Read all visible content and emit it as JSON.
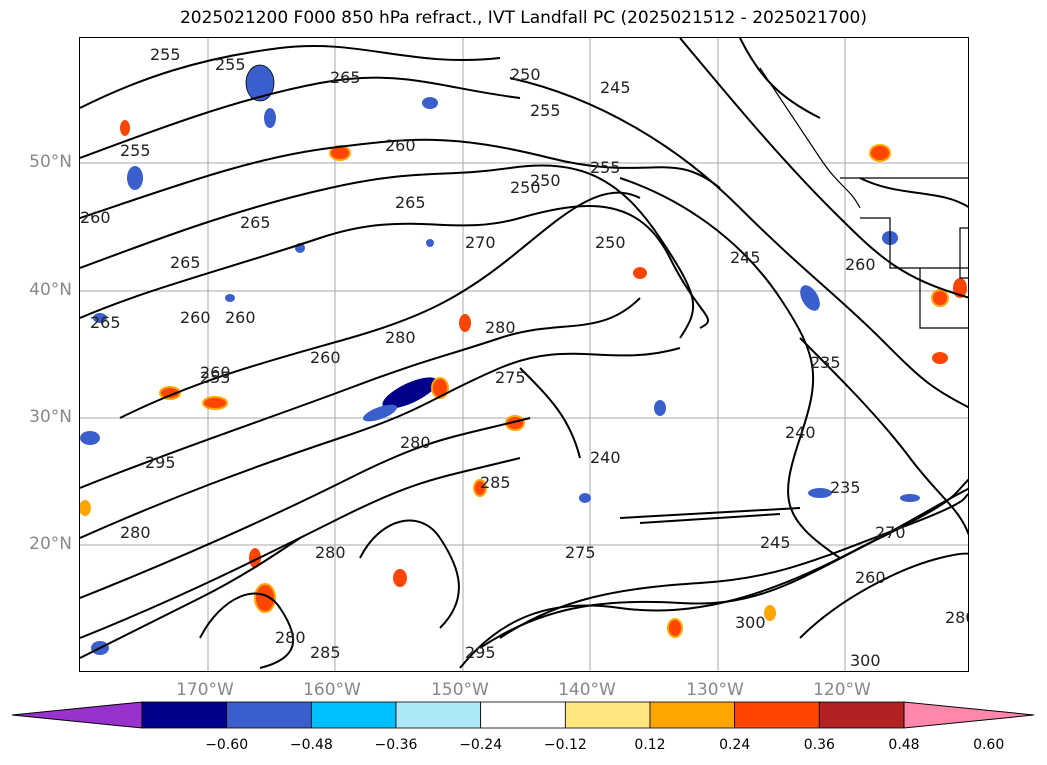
{
  "title": "2025021200 F000 850 hPa refract., IVT Landfall PC (2025021512 - 2025021700)",
  "lat_labels": [
    "50°N",
    "40°N",
    "30°N",
    "20°N"
  ],
  "lon_labels": [
    "170°W",
    "160°W",
    "150°W",
    "140°W",
    "130°W",
    "120°W"
  ],
  "contour_labels": [
    "255",
    "255",
    "265",
    "260",
    "250",
    "245",
    "250",
    "255",
    "255",
    "255",
    "260",
    "265",
    "265",
    "265",
    "260",
    "250",
    "250",
    "270",
    "245",
    "260",
    "260",
    "265",
    "260",
    "280",
    "280",
    "260",
    "255",
    "275",
    "240",
    "240",
    "235",
    "280",
    "245",
    "270",
    "260",
    "285",
    "280",
    "295",
    "280",
    "285",
    "295",
    "300",
    "300",
    "275",
    "280",
    "235",
    "280"
  ],
  "colorbar": {
    "ticks": [
      "−0.60",
      "−0.48",
      "−0.36",
      "−0.24",
      "−0.12",
      "0.12",
      "0.24",
      "0.36",
      "0.48",
      "0.60"
    ],
    "colors": [
      "#9932cc",
      "#00008b",
      "#3a5fcd",
      "#00bfff",
      "#ade8f8",
      "#ffffff",
      "#ffe680",
      "#ffa500",
      "#ff4500",
      "#b22222",
      "#ff88aa"
    ]
  }
}
